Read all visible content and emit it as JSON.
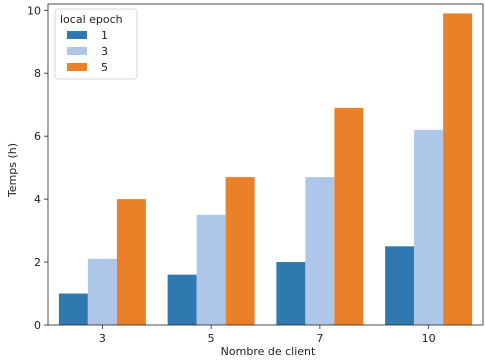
{
  "chart_data": {
    "type": "bar",
    "categories": [
      "3",
      "5",
      "7",
      "10"
    ],
    "series": [
      {
        "name": "1",
        "color": "#2f78b0",
        "values": [
          1.0,
          1.6,
          2.0,
          2.5
        ]
      },
      {
        "name": "3",
        "color": "#aec7e8",
        "values": [
          2.1,
          3.5,
          4.7,
          6.2
        ]
      },
      {
        "name": "5",
        "color": "#ea8128",
        "values": [
          4.0,
          4.7,
          6.9,
          9.9
        ]
      }
    ],
    "xlabel": "Nombre de client",
    "ylabel": "Temps (h)",
    "ylim": [
      0,
      10.2
    ],
    "yticks": [
      0,
      2,
      4,
      6,
      8,
      10
    ],
    "grid": false,
    "legend": {
      "title": "local epoch",
      "placement": "top-left"
    }
  }
}
